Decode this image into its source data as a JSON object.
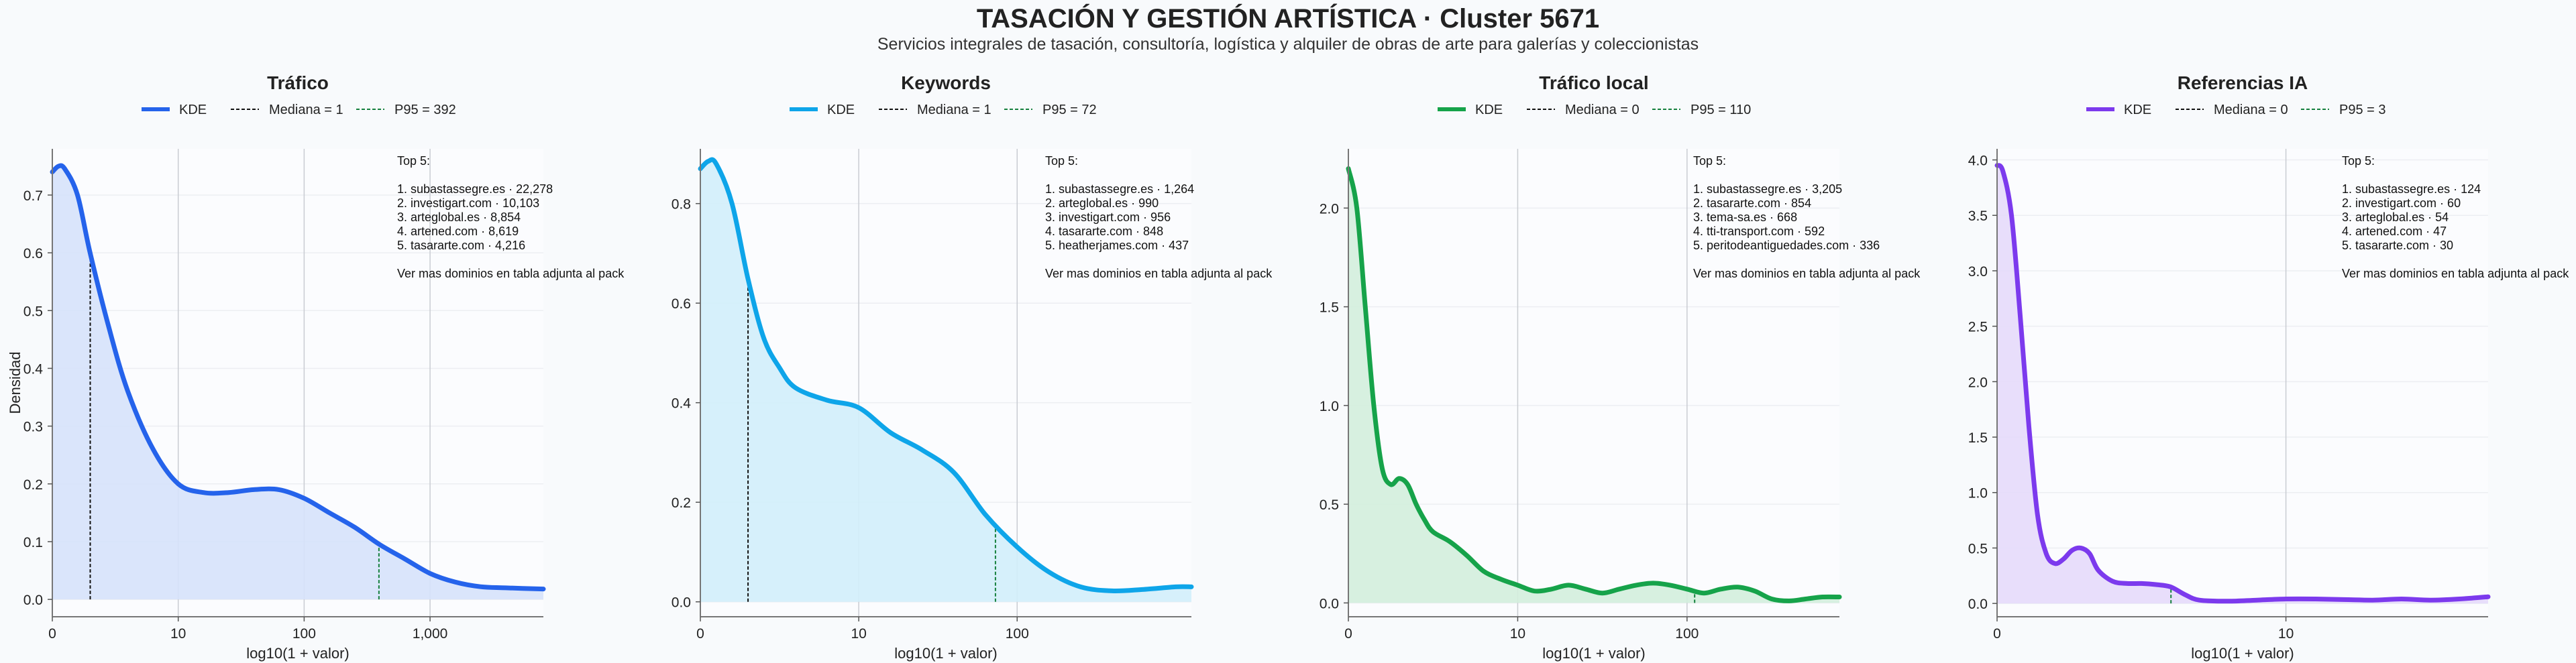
{
  "title": "TASACIÓN Y GESTIÓN ARTÍSTICA · Cluster 5671",
  "subtitle": "Servicios integrales de tasación, consultoría, logística y alquiler de obras de arte para galerías y coleccionistas",
  "chart_data": [
    {
      "type": "area",
      "title": "Tráfico",
      "xlabel": "log10(1 + valor)",
      "ylabel": "Densidad",
      "xscale": "log10(1 + x)",
      "xlim": [
        0,
        3.9
      ],
      "ylim": [
        -0.03,
        0.78
      ],
      "xticks": [
        {
          "v": 0,
          "label": "0"
        },
        {
          "v": 1,
          "label": "10"
        },
        {
          "v": 2,
          "label": "100"
        },
        {
          "v": 3,
          "label": "1,000"
        }
      ],
      "yticks": [
        {
          "v": 0,
          "label": "0.0"
        },
        {
          "v": 0.1,
          "label": "0.1"
        },
        {
          "v": 0.2,
          "label": "0.2"
        },
        {
          "v": 0.3,
          "label": "0.3"
        },
        {
          "v": 0.4,
          "label": "0.4"
        },
        {
          "v": 0.5,
          "label": "0.5"
        },
        {
          "v": 0.6,
          "label": "0.6"
        },
        {
          "v": 0.7,
          "label": "0.7"
        }
      ],
      "color": "#2563eb",
      "fill": "#d6e2fb",
      "legend": {
        "kde": "KDE",
        "median": "Mediana = 1",
        "p95": "P95 = 392"
      },
      "median_x": 0.301,
      "p95_x": 2.594,
      "kde": {
        "x": [
          0,
          0.05,
          0.1,
          0.2,
          0.3,
          0.45,
          0.6,
          0.8,
          1.0,
          1.2,
          1.4,
          1.6,
          1.8,
          2.0,
          2.2,
          2.4,
          2.6,
          2.8,
          3.0,
          3.2,
          3.4,
          3.6,
          3.9
        ],
        "y": [
          0.74,
          0.75,
          0.745,
          0.7,
          0.6,
          0.47,
          0.36,
          0.26,
          0.2,
          0.185,
          0.185,
          0.19,
          0.19,
          0.175,
          0.15,
          0.125,
          0.095,
          0.07,
          0.045,
          0.03,
          0.022,
          0.02,
          0.018
        ]
      },
      "annotation": [
        "Top 5:",
        "",
        "1. subastassegre.es · 22,278",
        "2. investigart.com · 10,103",
        "3. arteglobal.es · 8,854",
        "4. artened.com · 8,619",
        "5. tasararte.com · 4,216",
        "",
        "Ver mas dominios en tabla adjunta al pack"
      ]
    },
    {
      "type": "area",
      "title": "Keywords",
      "xlabel": "log10(1 + valor)",
      "ylabel": "",
      "xscale": "log10(1 + x)",
      "xlim": [
        0,
        3.1
      ],
      "ylim": [
        -0.03,
        0.91
      ],
      "xticks": [
        {
          "v": 0,
          "label": "0"
        },
        {
          "v": 1,
          "label": "10"
        },
        {
          "v": 2,
          "label": "100"
        }
      ],
      "yticks": [
        {
          "v": 0,
          "label": "0.0"
        },
        {
          "v": 0.2,
          "label": "0.2"
        },
        {
          "v": 0.4,
          "label": "0.4"
        },
        {
          "v": 0.6,
          "label": "0.6"
        },
        {
          "v": 0.8,
          "label": "0.8"
        }
      ],
      "color": "#0ea5e9",
      "fill": "#d1eefb",
      "legend": {
        "kde": "KDE",
        "median": "Mediana = 1",
        "p95": "P95 = 72"
      },
      "median_x": 0.301,
      "p95_x": 1.863,
      "kde": {
        "x": [
          0,
          0.05,
          0.1,
          0.2,
          0.3,
          0.4,
          0.5,
          0.6,
          0.8,
          1.0,
          1.2,
          1.4,
          1.6,
          1.8,
          2.0,
          2.2,
          2.4,
          2.6,
          2.8,
          3.0,
          3.1
        ],
        "y": [
          0.87,
          0.885,
          0.88,
          0.8,
          0.65,
          0.53,
          0.47,
          0.43,
          0.405,
          0.39,
          0.34,
          0.305,
          0.26,
          0.175,
          0.11,
          0.06,
          0.03,
          0.022,
          0.025,
          0.03,
          0.03
        ]
      },
      "annotation": [
        "Top 5:",
        "",
        "1. subastassegre.es · 1,264",
        "2. arteglobal.es · 990",
        "3. investigart.com · 956",
        "4. tasararte.com · 848",
        "5. heatherjames.com · 437",
        "",
        "Ver mas dominios en tabla adjunta al pack"
      ]
    },
    {
      "type": "area",
      "title": "Tráfico local",
      "xlabel": "log10(1 + valor)",
      "ylabel": "",
      "xscale": "log10(1 + x)",
      "xlim": [
        0,
        2.9
      ],
      "ylim": [
        -0.07,
        2.3
      ],
      "xticks": [
        {
          "v": 0,
          "label": "0"
        },
        {
          "v": 1,
          "label": "10"
        },
        {
          "v": 2,
          "label": "100"
        }
      ],
      "yticks": [
        {
          "v": 0,
          "label": "0.0"
        },
        {
          "v": 0.5,
          "label": "0.5"
        },
        {
          "v": 1,
          "label": "1.0"
        },
        {
          "v": 1.5,
          "label": "1.5"
        },
        {
          "v": 2,
          "label": "2.0"
        }
      ],
      "color": "#16a34a",
      "fill": "#d3eedd",
      "legend": {
        "kde": "KDE",
        "median": "Mediana = 0",
        "p95": "P95 = 110"
      },
      "median_x": 0,
      "p95_x": 2.045,
      "kde": {
        "x": [
          0,
          0.05,
          0.1,
          0.15,
          0.2,
          0.25,
          0.3,
          0.35,
          0.4,
          0.45,
          0.5,
          0.6,
          0.7,
          0.8,
          0.9,
          1.0,
          1.1,
          1.2,
          1.3,
          1.4,
          1.5,
          1.6,
          1.7,
          1.8,
          1.9,
          2.0,
          2.1,
          2.2,
          2.3,
          2.4,
          2.5,
          2.6,
          2.7,
          2.8,
          2.9
        ],
        "y": [
          2.2,
          2.0,
          1.5,
          1.0,
          0.68,
          0.6,
          0.63,
          0.6,
          0.5,
          0.42,
          0.36,
          0.31,
          0.24,
          0.16,
          0.12,
          0.09,
          0.06,
          0.07,
          0.09,
          0.07,
          0.05,
          0.07,
          0.09,
          0.1,
          0.09,
          0.07,
          0.05,
          0.07,
          0.08,
          0.06,
          0.02,
          0.01,
          0.02,
          0.03,
          0.03
        ]
      },
      "annotation": [
        "Top 5:",
        "",
        "1. subastassegre.es · 3,205",
        "2. tasararte.com · 854",
        "3. tema-sa.es · 668",
        "4. tti-transport.com · 592",
        "5. peritodeantiguedades.com · 336",
        "",
        "Ver mas dominios en tabla adjunta al pack"
      ]
    },
    {
      "type": "area",
      "title": "Referencias IA",
      "xlabel": "log10(1 + valor)",
      "ylabel": "",
      "xscale": "log10(1 + x)",
      "xlim": [
        0,
        1.7
      ],
      "ylim": [
        -0.12,
        4.1
      ],
      "xticks": [
        {
          "v": 0,
          "label": "0"
        },
        {
          "v": 1,
          "label": "10"
        }
      ],
      "yticks": [
        {
          "v": 0,
          "label": "0.0"
        },
        {
          "v": 0.5,
          "label": "0.5"
        },
        {
          "v": 1,
          "label": "1.0"
        },
        {
          "v": 1.5,
          "label": "1.5"
        },
        {
          "v": 2,
          "label": "2.0"
        },
        {
          "v": 2.5,
          "label": "2.5"
        },
        {
          "v": 3,
          "label": "3.0"
        },
        {
          "v": 3.5,
          "label": "3.5"
        },
        {
          "v": 4,
          "label": "4.0"
        }
      ],
      "color": "#7c3aed",
      "fill": "#e6dafb",
      "legend": {
        "kde": "KDE",
        "median": "Mediana = 0",
        "p95": "P95 = 3"
      },
      "median_x": 0,
      "p95_x": 0.602,
      "kde": {
        "x": [
          0,
          0.02,
          0.05,
          0.08,
          0.11,
          0.14,
          0.17,
          0.2,
          0.23,
          0.26,
          0.29,
          0.32,
          0.35,
          0.4,
          0.45,
          0.5,
          0.55,
          0.6,
          0.65,
          0.7,
          0.8,
          0.9,
          1.0,
          1.1,
          1.2,
          1.3,
          1.4,
          1.5,
          1.6,
          1.7
        ],
        "y": [
          3.95,
          3.9,
          3.5,
          2.6,
          1.6,
          0.8,
          0.45,
          0.36,
          0.4,
          0.48,
          0.5,
          0.45,
          0.3,
          0.2,
          0.18,
          0.18,
          0.17,
          0.15,
          0.08,
          0.03,
          0.02,
          0.03,
          0.04,
          0.04,
          0.035,
          0.03,
          0.04,
          0.03,
          0.04,
          0.06
        ]
      },
      "annotation": [
        "Top 5:",
        "",
        "1. subastassegre.es · 124",
        "2. investigart.com · 60",
        "3. arteglobal.es · 54",
        "4. artened.com · 47",
        "5. tasararte.com · 30",
        "",
        "Ver mas dominios en tabla adjunta al pack"
      ]
    }
  ]
}
